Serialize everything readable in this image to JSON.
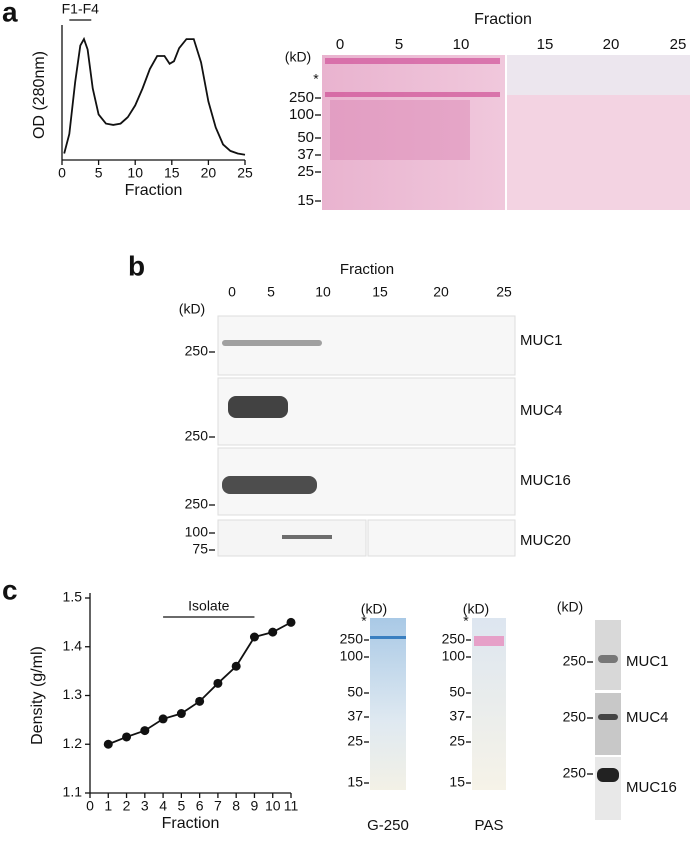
{
  "panels": [
    "a",
    "b",
    "c"
  ],
  "chart_data": [
    {
      "type": "line",
      "xlabel": "Fraction",
      "ylabel": "OD (280nm)",
      "annotation": {
        "text": "F1-F4",
        "x": [
          1,
          4
        ]
      },
      "x": [
        0.3,
        1,
        1.8,
        2.5,
        3,
        3.5,
        4.2,
        5,
        6,
        7,
        8,
        9,
        10,
        11,
        12,
        13,
        14,
        14.7,
        15.3,
        16,
        17,
        18,
        19,
        20,
        21,
        22,
        23,
        24,
        25
      ],
      "values": [
        0.05,
        0.2,
        0.6,
        0.88,
        0.93,
        0.85,
        0.55,
        0.35,
        0.28,
        0.27,
        0.28,
        0.33,
        0.42,
        0.55,
        0.7,
        0.8,
        0.8,
        0.74,
        0.76,
        0.86,
        0.93,
        0.93,
        0.75,
        0.45,
        0.25,
        0.12,
        0.07,
        0.05,
        0.04
      ],
      "color": "#111111",
      "xlim": [
        0,
        25
      ],
      "xticks": [
        0,
        5,
        10,
        15,
        20,
        25
      ],
      "ylim": [
        0,
        1
      ],
      "markers": false
    },
    {
      "type": "line",
      "xlabel": "Fraction",
      "ylabel": "Density (g/ml)",
      "annotation": {
        "text": "Isolate",
        "x": [
          4,
          9
        ]
      },
      "x": [
        1,
        2,
        3,
        4,
        5,
        6,
        7,
        8,
        9,
        10,
        11
      ],
      "values": [
        1.2,
        1.215,
        1.228,
        1.252,
        1.263,
        1.288,
        1.325,
        1.36,
        1.42,
        1.43,
        1.45
      ],
      "color": "#111111",
      "xlim": [
        0,
        11
      ],
      "xticks": [
        0,
        1,
        2,
        3,
        4,
        5,
        6,
        7,
        8,
        9,
        10,
        11
      ],
      "ylim": [
        1.1,
        1.5
      ],
      "yticks": [
        1.1,
        1.2,
        1.3,
        1.4,
        1.5
      ],
      "markers": true
    }
  ],
  "gel_a": {
    "title": "Fraction",
    "ticks": [
      "0",
      "5",
      "10",
      "15",
      "20",
      "25"
    ],
    "unit": "(kD)",
    "marker": "*",
    "mw": [
      "250",
      "100",
      "50",
      "37",
      "25",
      "15"
    ]
  },
  "gel_b": {
    "title": "Fraction",
    "ticks": [
      "0",
      "5",
      "10",
      "15",
      "20",
      "25"
    ],
    "unit": "(kD)",
    "blots": [
      {
        "label": "MUC1",
        "mw": [
          "250"
        ]
      },
      {
        "label": "MUC4",
        "mw": [
          "250"
        ]
      },
      {
        "label": "MUC16",
        "mw": [
          "250"
        ]
      },
      {
        "label": "MUC20",
        "mw": [
          "100",
          "75"
        ]
      }
    ]
  },
  "gel_c": {
    "lanes": [
      {
        "unit": "(kD)",
        "marker": "*",
        "mw": [
          "250",
          "100",
          "50",
          "37",
          "25",
          "15"
        ],
        "label": "G-250"
      },
      {
        "unit": "(kD)",
        "marker": "*",
        "mw": [
          "250",
          "100",
          "50",
          "37",
          "25",
          "15"
        ],
        "label": "PAS"
      }
    ],
    "blots": {
      "unit": "(kD)",
      "rows": [
        {
          "mw": "250",
          "label": "MUC1"
        },
        {
          "mw": "250",
          "label": "MUC4"
        },
        {
          "mw": "250",
          "label": "MUC16"
        }
      ]
    }
  }
}
